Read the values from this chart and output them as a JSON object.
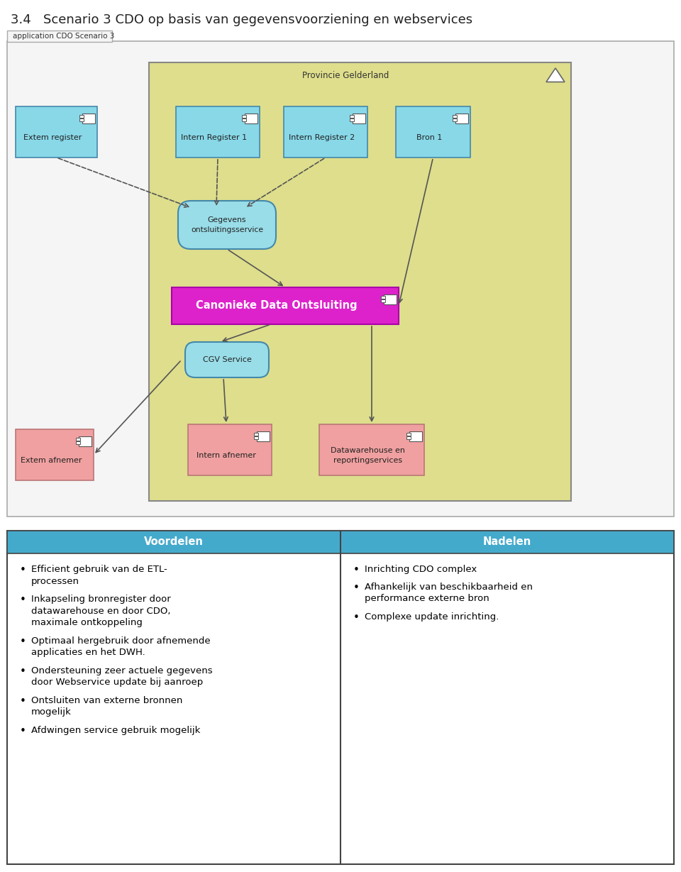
{
  "title": "3.4   Scenario 3 CDO op basis van gegevensvoorziening en webservices",
  "diagram_label": "application CDO Scenario 3",
  "province_label": "Provincie Gelderland",
  "diagram_border_color": "#aaaaaa",
  "province_bg": "#dede8c",
  "province_border": "#888888",
  "cyan_box_bg": "#88d8e8",
  "cyan_box_border": "#4488aa",
  "pink_box_bg": "#f0a0a0",
  "pink_box_border": "#bb7777",
  "magenta_box_bg": "#dd22cc",
  "magenta_box_border": "#aa00aa",
  "service_bg": "#99dde8",
  "service_border": "#4488aa",
  "header_bg": "#44aacc",
  "table_border": "#444444",
  "voordelen_items": [
    "Efficient gebruik van de ETL-\nprocessen",
    "Inkapseling bronregister door\ndatawarehouse en door CDO,\nmaximale ontkoppeling",
    "Optimaal hergebruik door afnemende\napplicaties en het DWH.",
    "Ondersteuning zeer actuele gegevens\ndoor Webservice update bij aanroep",
    "Ontsluiten van externe bronnen\nmogelijk",
    "Afdwingen service gebruik mogelijk"
  ],
  "nadelen_items": [
    "Inrichting CDO complex",
    "Afhankelijk van beschikbaarheid en\nperformance externe bron",
    "Complexe update inrichting."
  ]
}
